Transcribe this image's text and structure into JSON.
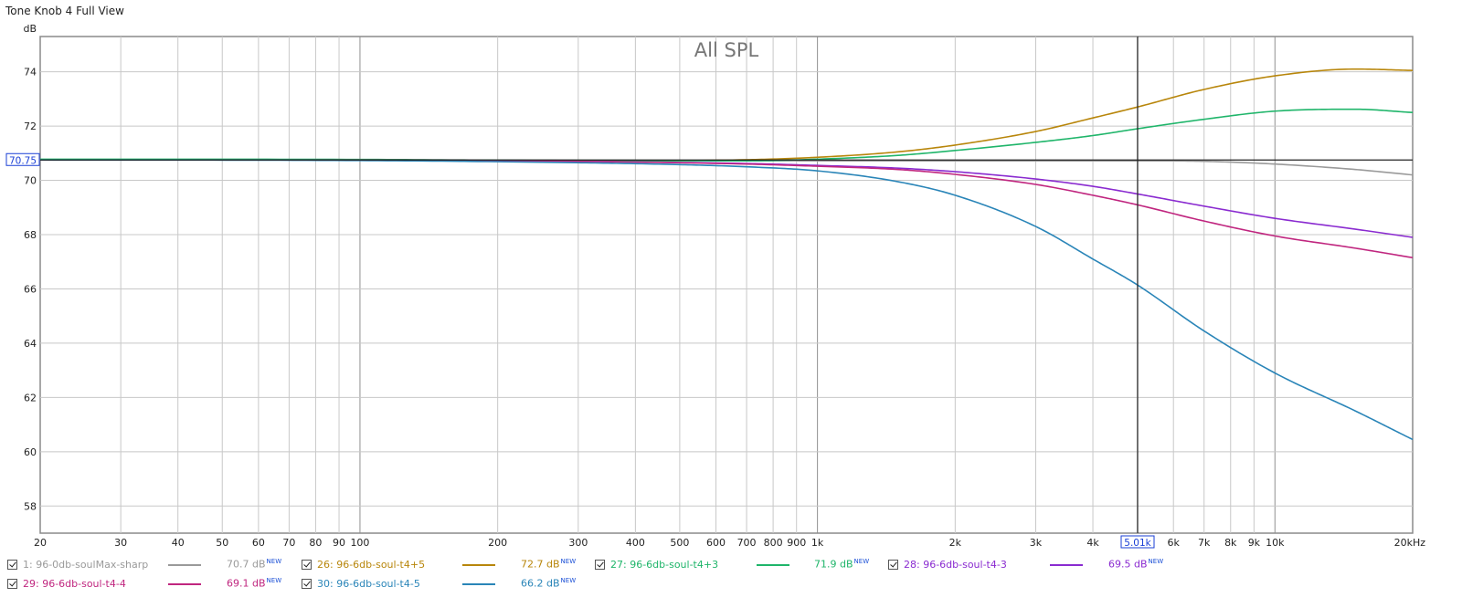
{
  "window": {
    "title": "Tone Knob 4 Full View"
  },
  "chart_data": {
    "type": "line",
    "title": "All SPL",
    "ylabel": "dB",
    "xlabel": "",
    "xscale": "log",
    "xlim": [
      20,
      20000
    ],
    "ylim": [
      57,
      75.3
    ],
    "yticks": [
      58,
      60,
      62,
      64,
      66,
      68,
      70,
      72,
      74
    ],
    "ytick_labels": [
      "58",
      "60",
      "62",
      "64",
      "66",
      "68",
      "70",
      "72",
      "74"
    ],
    "xticks": [
      20,
      30,
      40,
      50,
      60,
      70,
      80,
      90,
      100,
      200,
      300,
      400,
      500,
      600,
      700,
      800,
      900,
      1000,
      2000,
      3000,
      4000,
      6000,
      7000,
      8000,
      9000,
      10000,
      20000
    ],
    "xtick_labels": [
      "20",
      "30",
      "40",
      "50",
      "60",
      "70",
      "80",
      "90",
      "100",
      "200",
      "300",
      "400",
      "500",
      "600",
      "700",
      "800",
      "900",
      "1k",
      "2k",
      "3k",
      "4k",
      "6k",
      "7k",
      "8k",
      "9k",
      "10k",
      "20kHz"
    ],
    "cursor": {
      "x": 5010,
      "x_label": "5.01k",
      "y": 70.75,
      "y_label": "70.75"
    },
    "grid": true,
    "legend_placement": "bottom",
    "series": [
      {
        "name": "1: 96-0db-soulMax-sharp",
        "color": "#9a9a9a",
        "value_label": "70.7 dB",
        "x": [
          20,
          100,
          500,
          1000,
          2000,
          3000,
          5000,
          7000,
          10000,
          15000,
          20000
        ],
        "y": [
          70.75,
          70.75,
          70.73,
          70.72,
          70.72,
          70.72,
          70.72,
          70.7,
          70.6,
          70.4,
          70.2
        ]
      },
      {
        "name": "26: 96-6db-soul-t4+5",
        "color": "#b8860b",
        "value_label": "72.7 dB",
        "x": [
          20,
          100,
          300,
          700,
          1000,
          1500,
          2000,
          3000,
          4000,
          5000,
          7000,
          10000,
          15000,
          20000
        ],
        "y": [
          70.75,
          70.75,
          70.72,
          70.76,
          70.85,
          71.05,
          71.3,
          71.8,
          72.3,
          72.7,
          73.35,
          73.85,
          74.1,
          74.05
        ]
      },
      {
        "name": "27: 96-6db-soul-t4+3",
        "color": "#1fb56a",
        "value_label": "71.9 dB",
        "x": [
          20,
          100,
          300,
          700,
          1000,
          1500,
          2000,
          3000,
          4000,
          5000,
          7000,
          10000,
          15000,
          20000
        ],
        "y": [
          70.78,
          70.77,
          70.73,
          70.72,
          70.78,
          70.92,
          71.1,
          71.4,
          71.65,
          71.9,
          72.25,
          72.55,
          72.62,
          72.5
        ]
      },
      {
        "name": "28: 96-6db-soul-t4-3",
        "color": "#8a2bd0",
        "value_label": "69.5 dB",
        "x": [
          20,
          100,
          300,
          700,
          1000,
          1500,
          2000,
          3000,
          4000,
          5000,
          7000,
          10000,
          15000,
          20000
        ],
        "y": [
          70.75,
          70.75,
          70.7,
          70.62,
          70.55,
          70.45,
          70.32,
          70.05,
          69.78,
          69.5,
          69.05,
          68.6,
          68.2,
          67.9
        ]
      },
      {
        "name": "29: 96-6db-soul-t4-4",
        "color": "#c0267f",
        "value_label": "69.1 dB",
        "x": [
          20,
          100,
          300,
          700,
          1000,
          1500,
          2000,
          3000,
          4000,
          5000,
          7000,
          10000,
          15000,
          20000
        ],
        "y": [
          70.75,
          70.75,
          70.7,
          70.6,
          70.52,
          70.4,
          70.22,
          69.85,
          69.45,
          69.1,
          68.5,
          67.95,
          67.5,
          67.15
        ]
      },
      {
        "name": "30: 96-6db-soul-t4-5",
        "color": "#2a85b8",
        "value_label": "66.2 dB",
        "x": [
          20,
          100,
          300,
          500,
          700,
          1000,
          1500,
          2000,
          3000,
          4000,
          5000,
          7000,
          10000,
          15000,
          20000
        ],
        "y": [
          70.75,
          70.73,
          70.65,
          70.58,
          70.5,
          70.35,
          69.95,
          69.45,
          68.3,
          67.1,
          66.15,
          64.45,
          62.9,
          61.5,
          60.45
        ]
      }
    ]
  },
  "legend": {
    "new_tag": "NEW",
    "checked": [
      true,
      true,
      true,
      true,
      true,
      true
    ]
  }
}
